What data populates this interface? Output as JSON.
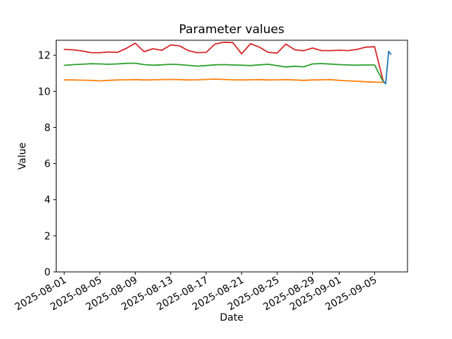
{
  "chart_data": {
    "type": "line",
    "title": "Parameter values",
    "xlabel": "Date",
    "ylabel": "Value",
    "grid": false,
    "legend": "none",
    "background": "#ffffff",
    "axis_color": "#000000",
    "y_axis": {
      "ticks": [
        0,
        2,
        4,
        6,
        8,
        10,
        12
      ],
      "ylim": [
        0,
        12.83
      ]
    },
    "x_axis": {
      "xlim": [
        "2025-07-31T02:00:00Z",
        "2025-09-08T17:00:00Z"
      ],
      "ticks": [
        {
          "date": "2025-08-01",
          "label": "2025-08-01"
        },
        {
          "date": "2025-08-05",
          "label": "2025-08-05"
        },
        {
          "date": "2025-08-09",
          "label": "2025-08-09"
        },
        {
          "date": "2025-08-13",
          "label": "2025-08-13"
        },
        {
          "date": "2025-08-17",
          "label": "2025-08-17"
        },
        {
          "date": "2025-08-21",
          "label": "2025-08-21"
        },
        {
          "date": "2025-08-25",
          "label": "2025-08-25"
        },
        {
          "date": "2025-08-29",
          "label": "2025-08-29"
        },
        {
          "date": "2025-09-01",
          "label": "2025-09-01"
        },
        {
          "date": "2025-09-05",
          "label": "2025-09-05"
        }
      ]
    },
    "series": [
      {
        "name": "red",
        "color": "#d62728",
        "points": [
          [
            "2025-08-01",
            12.32
          ],
          [
            "2025-08-02",
            12.3
          ],
          [
            "2025-08-03",
            12.24
          ],
          [
            "2025-08-04",
            12.14
          ],
          [
            "2025-08-05",
            12.14
          ],
          [
            "2025-08-06",
            12.18
          ],
          [
            "2025-08-07",
            12.16
          ],
          [
            "2025-08-08",
            12.38
          ],
          [
            "2025-08-09",
            12.67
          ],
          [
            "2025-08-10",
            12.2
          ],
          [
            "2025-08-11",
            12.36
          ],
          [
            "2025-08-12",
            12.27
          ],
          [
            "2025-08-13",
            12.57
          ],
          [
            "2025-08-14",
            12.52
          ],
          [
            "2025-08-15",
            12.25
          ],
          [
            "2025-08-16",
            12.14
          ],
          [
            "2025-08-17",
            12.16
          ],
          [
            "2025-08-18",
            12.62
          ],
          [
            "2025-08-19",
            12.72
          ],
          [
            "2025-08-20",
            12.7
          ],
          [
            "2025-08-21",
            12.08
          ],
          [
            "2025-08-22",
            12.64
          ],
          [
            "2025-08-23",
            12.45
          ],
          [
            "2025-08-24",
            12.16
          ],
          [
            "2025-08-25",
            12.12
          ],
          [
            "2025-08-26",
            12.62
          ],
          [
            "2025-08-27",
            12.3
          ],
          [
            "2025-08-28",
            12.25
          ],
          [
            "2025-08-29",
            12.4
          ],
          [
            "2025-08-30",
            12.26
          ],
          [
            "2025-08-31",
            12.26
          ],
          [
            "2025-09-01",
            12.28
          ],
          [
            "2025-09-02",
            12.26
          ],
          [
            "2025-09-03",
            12.32
          ],
          [
            "2025-09-04",
            12.45
          ],
          [
            "2025-09-05",
            12.47
          ],
          [
            "2025-09-06",
            10.52
          ]
        ]
      },
      {
        "name": "green",
        "color": "#2ca02c",
        "points": [
          [
            "2025-08-01",
            11.44
          ],
          [
            "2025-08-02",
            11.48
          ],
          [
            "2025-08-03",
            11.5
          ],
          [
            "2025-08-04",
            11.53
          ],
          [
            "2025-08-05",
            11.52
          ],
          [
            "2025-08-06",
            11.5
          ],
          [
            "2025-08-07",
            11.52
          ],
          [
            "2025-08-08",
            11.55
          ],
          [
            "2025-08-09",
            11.56
          ],
          [
            "2025-08-10",
            11.48
          ],
          [
            "2025-08-11",
            11.45
          ],
          [
            "2025-08-12",
            11.47
          ],
          [
            "2025-08-13",
            11.5
          ],
          [
            "2025-08-14",
            11.48
          ],
          [
            "2025-08-15",
            11.44
          ],
          [
            "2025-08-16",
            11.4
          ],
          [
            "2025-08-17",
            11.43
          ],
          [
            "2025-08-18",
            11.47
          ],
          [
            "2025-08-19",
            11.48
          ],
          [
            "2025-08-20",
            11.46
          ],
          [
            "2025-08-21",
            11.45
          ],
          [
            "2025-08-22",
            11.43
          ],
          [
            "2025-08-23",
            11.47
          ],
          [
            "2025-08-24",
            11.5
          ],
          [
            "2025-08-25",
            11.42
          ],
          [
            "2025-08-26",
            11.35
          ],
          [
            "2025-08-27",
            11.39
          ],
          [
            "2025-08-28",
            11.36
          ],
          [
            "2025-08-29",
            11.52
          ],
          [
            "2025-08-30",
            11.54
          ],
          [
            "2025-08-31",
            11.51
          ],
          [
            "2025-09-01",
            11.48
          ],
          [
            "2025-09-02",
            11.46
          ],
          [
            "2025-09-03",
            11.45
          ],
          [
            "2025-09-04",
            11.46
          ],
          [
            "2025-09-05",
            11.46
          ],
          [
            "2025-09-06",
            10.5
          ]
        ]
      },
      {
        "name": "orange",
        "color": "#ff7f0e",
        "points": [
          [
            "2025-08-01",
            10.63
          ],
          [
            "2025-08-02",
            10.63
          ],
          [
            "2025-08-03",
            10.62
          ],
          [
            "2025-08-04",
            10.61
          ],
          [
            "2025-08-05",
            10.58
          ],
          [
            "2025-08-06",
            10.61
          ],
          [
            "2025-08-07",
            10.63
          ],
          [
            "2025-08-08",
            10.64
          ],
          [
            "2025-08-09",
            10.65
          ],
          [
            "2025-08-10",
            10.63
          ],
          [
            "2025-08-11",
            10.64
          ],
          [
            "2025-08-12",
            10.65
          ],
          [
            "2025-08-13",
            10.66
          ],
          [
            "2025-08-14",
            10.65
          ],
          [
            "2025-08-15",
            10.63
          ],
          [
            "2025-08-16",
            10.64
          ],
          [
            "2025-08-17",
            10.66
          ],
          [
            "2025-08-18",
            10.68
          ],
          [
            "2025-08-19",
            10.66
          ],
          [
            "2025-08-20",
            10.64
          ],
          [
            "2025-08-21",
            10.63
          ],
          [
            "2025-08-22",
            10.64
          ],
          [
            "2025-08-23",
            10.65
          ],
          [
            "2025-08-24",
            10.63
          ],
          [
            "2025-08-25",
            10.64
          ],
          [
            "2025-08-26",
            10.65
          ],
          [
            "2025-08-27",
            10.63
          ],
          [
            "2025-08-28",
            10.61
          ],
          [
            "2025-08-29",
            10.63
          ],
          [
            "2025-08-30",
            10.64
          ],
          [
            "2025-08-31",
            10.65
          ],
          [
            "2025-09-01",
            10.61
          ],
          [
            "2025-09-02",
            10.58
          ],
          [
            "2025-09-03",
            10.56
          ],
          [
            "2025-09-04",
            10.53
          ],
          [
            "2025-09-05",
            10.51
          ],
          [
            "2025-09-06",
            10.5
          ]
        ]
      },
      {
        "name": "blue",
        "color": "#1f77b4",
        "points": [
          [
            "2025-09-06T00:00:00Z",
            10.55
          ],
          [
            "2025-09-06T06:00:00Z",
            10.42
          ],
          [
            "2025-09-06T14:00:00Z",
            12.22
          ],
          [
            "2025-09-06T20:00:00Z",
            12.05
          ]
        ]
      }
    ]
  }
}
